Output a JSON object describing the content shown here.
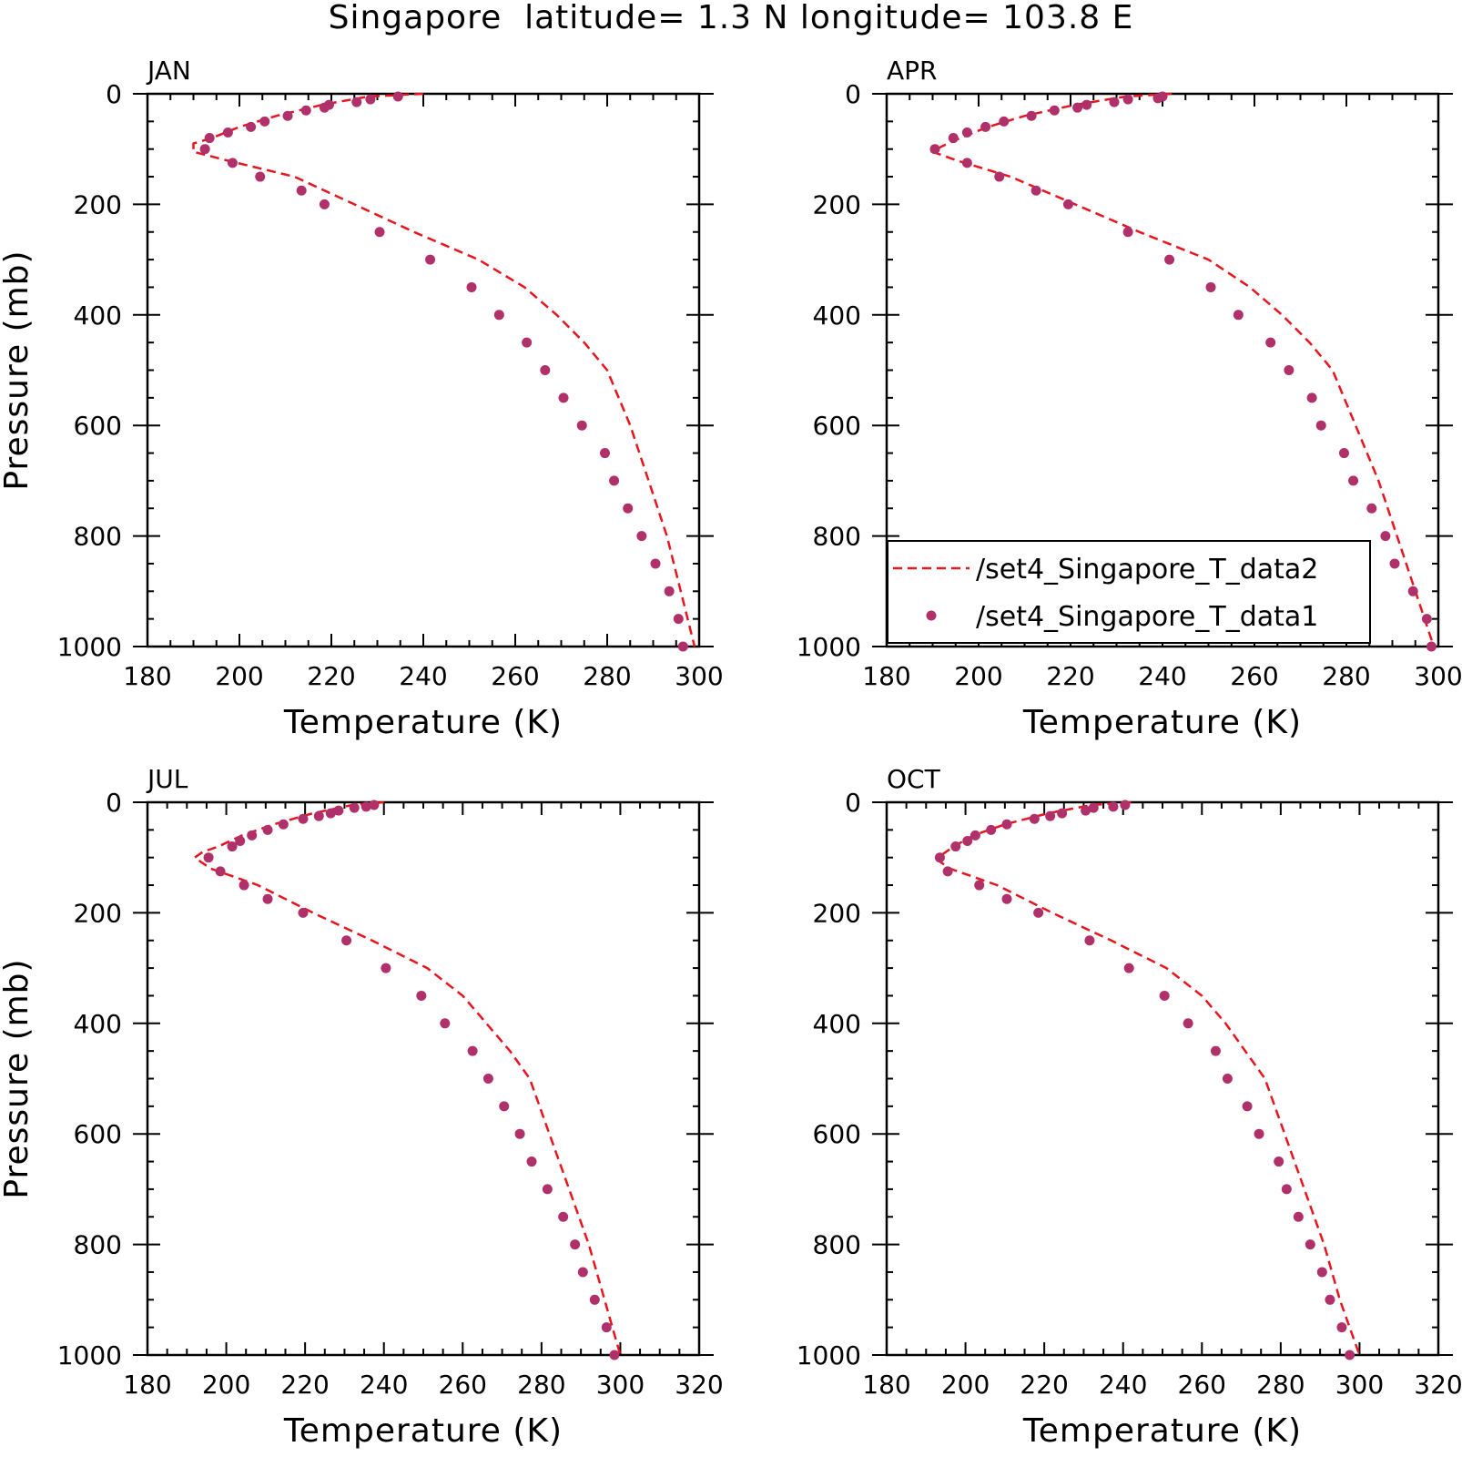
{
  "figure": {
    "title": "Singapore  latitude= 1.3 N longitude= 103.8 E"
  },
  "colors": {
    "line": "#e8141e",
    "marker": "#b0306a",
    "axis": "#000000"
  },
  "chart_data": [
    {
      "type": "line",
      "panel": "JAN",
      "xlabel": "Temperature (K)",
      "ylabel": "Pressure (mb)",
      "xlim": [
        180,
        300
      ],
      "ylim": [
        1000,
        0
      ],
      "xticks": [
        180,
        200,
        220,
        240,
        260,
        280,
        300
      ],
      "yticks": [
        0,
        200,
        400,
        600,
        800,
        1000
      ],
      "series": [
        {
          "name": "/set4_Singapore_T_data2",
          "style": "dashed",
          "x": [
            240,
            228,
            218,
            208,
            200,
            194,
            190,
            190,
            197,
            212,
            225,
            238,
            252,
            262,
            269,
            275,
            280,
            285,
            289,
            293,
            296,
            299
          ],
          "y": [
            0,
            5,
            20,
            40,
            60,
            80,
            90,
            105,
            120,
            150,
            200,
            250,
            300,
            350,
            400,
            450,
            500,
            600,
            700,
            800,
            900,
            1000
          ]
        },
        {
          "name": "/set4_Singapore_T_data1",
          "style": "markers",
          "x": [
            234.5,
            228.5,
            225.5,
            219.5,
            218.5,
            214.5,
            210.5,
            205.5,
            202.5,
            197.5,
            193.5,
            192.5,
            198.5,
            204.5,
            213.5,
            218.5,
            230.5,
            241.5,
            250.5,
            256.5,
            262.5,
            266.5,
            270.5,
            274.5,
            279.5,
            281.5,
            284.5,
            287.5,
            290.5,
            293.5,
            295.5,
            296.5
          ],
          "y": [
            5,
            10,
            15,
            20,
            25,
            30,
            40,
            50,
            60,
            70,
            80,
            100,
            125,
            150,
            175,
            200,
            250,
            300,
            350,
            400,
            450,
            500,
            550,
            600,
            650,
            700,
            750,
            800,
            850,
            900,
            950,
            1000
          ]
        }
      ]
    },
    {
      "type": "line",
      "panel": "APR",
      "xlabel": "Temperature (K)",
      "ylabel": "",
      "xlim": [
        180,
        300
      ],
      "ylim": [
        1000,
        0
      ],
      "xticks": [
        180,
        200,
        220,
        240,
        260,
        280,
        300
      ],
      "yticks": [
        0,
        200,
        400,
        600,
        800,
        1000
      ],
      "legend": {
        "placement": "bottom-right",
        "entries": [
          "/set4_Singapore_T_data2",
          "/set4_Singapore_T_data1"
        ]
      },
      "series": [
        {
          "name": "/set4_Singapore_T_data2",
          "style": "dashed",
          "x": [
            242,
            232,
            221,
            210,
            202,
            196,
            192,
            190,
            195,
            207,
            221,
            235,
            250,
            259,
            266,
            272,
            277,
            282,
            287,
            291,
            295,
            299
          ],
          "y": [
            0,
            5,
            20,
            40,
            60,
            80,
            95,
            105,
            120,
            150,
            200,
            250,
            300,
            350,
            400,
            450,
            500,
            600,
            700,
            800,
            900,
            1000
          ]
        },
        {
          "name": "/set4_Singapore_T_data1",
          "style": "markers",
          "x": [
            240,
            239,
            232.5,
            229.5,
            223.5,
            221.5,
            216.5,
            211.5,
            205.5,
            201.5,
            197.5,
            194.5,
            190.5,
            197.5,
            204.5,
            212.5,
            219.5,
            232.5,
            241.5,
            250.5,
            256.5,
            263.5,
            267.5,
            272.5,
            274.5,
            279.5,
            281.5,
            285.5,
            288.5,
            290.5,
            294.5,
            297.5,
            298.5
          ],
          "y": [
            5,
            8,
            10,
            15,
            20,
            25,
            30,
            40,
            50,
            60,
            70,
            80,
            100,
            125,
            150,
            175,
            200,
            250,
            300,
            350,
            400,
            450,
            500,
            550,
            600,
            650,
            700,
            750,
            800,
            850,
            900,
            950,
            1000
          ]
        }
      ]
    },
    {
      "type": "line",
      "panel": "JUL",
      "xlabel": "Temperature (K)",
      "ylabel": "Pressure (mb)",
      "xlim": [
        180,
        320
      ],
      "ylim": [
        1000,
        0
      ],
      "xticks": [
        180,
        200,
        220,
        240,
        260,
        280,
        300,
        320
      ],
      "yticks": [
        0,
        200,
        400,
        600,
        800,
        1000
      ],
      "series": [
        {
          "name": "/set4_Singapore_T_data2",
          "style": "dashed",
          "x": [
            240,
            232,
            222,
            212,
            204,
            198,
            194,
            192,
            196,
            208,
            222,
            237,
            251,
            260,
            266,
            272,
            277,
            282,
            287,
            292,
            296,
            300
          ],
          "y": [
            0,
            5,
            20,
            40,
            60,
            80,
            90,
            100,
            120,
            150,
            200,
            250,
            300,
            350,
            400,
            450,
            500,
            600,
            700,
            800,
            900,
            1000
          ]
        },
        {
          "name": "/set4_Singapore_T_data1",
          "style": "markers",
          "x": [
            237.5,
            235.5,
            232.5,
            228.5,
            226.5,
            223.5,
            219.5,
            214.5,
            210.5,
            206.5,
            203.5,
            201.5,
            195.5,
            198.5,
            204.5,
            210.5,
            219.5,
            230.5,
            240.5,
            249.5,
            255.5,
            262.5,
            266.5,
            270.5,
            274.5,
            277.5,
            281.5,
            285.5,
            288.5,
            290.5,
            293.5,
            296.5,
            298.5
          ],
          "y": [
            5,
            8,
            10,
            15,
            20,
            25,
            30,
            40,
            50,
            60,
            70,
            80,
            100,
            125,
            150,
            175,
            200,
            250,
            300,
            350,
            400,
            450,
            500,
            550,
            600,
            650,
            700,
            750,
            800,
            850,
            900,
            950,
            1000
          ]
        }
      ]
    },
    {
      "type": "line",
      "panel": "OCT",
      "xlabel": "Temperature (K)",
      "ylabel": "",
      "xlim": [
        180,
        320
      ],
      "ylim": [
        1000,
        0
      ],
      "xticks": [
        180,
        200,
        220,
        240,
        260,
        280,
        300,
        320
      ],
      "yticks": [
        0,
        200,
        400,
        600,
        800,
        1000
      ],
      "series": [
        {
          "name": "/set4_Singapore_T_data2",
          "style": "dashed",
          "x": [
            242,
            232,
            221,
            210,
            202,
            197,
            194,
            193,
            196,
            208,
            222,
            237,
            251,
            260,
            266,
            271,
            276,
            281,
            286,
            291,
            295,
            300
          ],
          "y": [
            0,
            5,
            20,
            40,
            60,
            80,
            95,
            105,
            120,
            150,
            200,
            250,
            300,
            350,
            400,
            450,
            500,
            600,
            700,
            800,
            900,
            1000
          ]
        },
        {
          "name": "/set4_Singapore_T_data1",
          "style": "markers",
          "x": [
            240.5,
            237.5,
            232.5,
            230.5,
            224.5,
            221.5,
            217.5,
            210.5,
            206.5,
            202.5,
            200.5,
            197.5,
            193.5,
            195.5,
            203.5,
            210.5,
            218.5,
            231.5,
            241.5,
            250.5,
            256.5,
            263.5,
            266.5,
            271.5,
            274.5,
            279.5,
            281.5,
            284.5,
            287.5,
            290.5,
            292.5,
            295.5,
            297.5
          ],
          "y": [
            5,
            8,
            10,
            15,
            20,
            25,
            30,
            40,
            50,
            60,
            70,
            80,
            100,
            125,
            150,
            175,
            200,
            250,
            300,
            350,
            400,
            450,
            500,
            550,
            600,
            650,
            700,
            750,
            800,
            850,
            900,
            950,
            1000
          ]
        }
      ]
    }
  ]
}
